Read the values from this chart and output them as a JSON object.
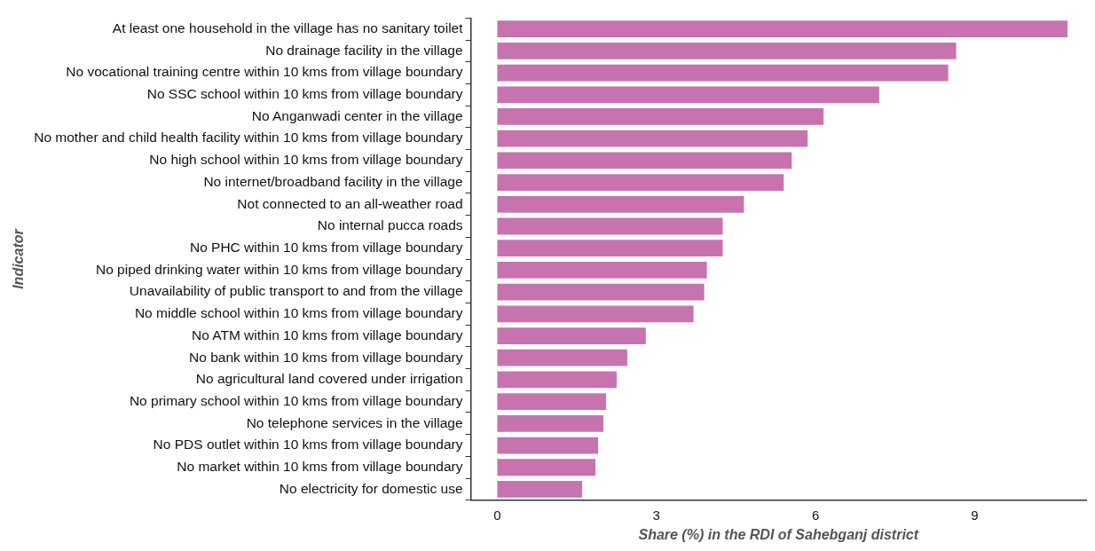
{
  "chart_data": {
    "type": "bar",
    "orientation": "horizontal",
    "ylabel": "Indicator",
    "xlabel": "Share (%) in the RDI of Sahebganj district",
    "categories": [
      "At least one household in the village has no sanitary toilet",
      "No drainage facility in the village",
      "No vocational training centre within 10 kms from village boundary",
      "No SSC school within 10 kms from village boundary",
      "No Anganwadi center in the village",
      "No mother and child health facility within 10 kms from village boundary",
      "No high school within 10 kms from village boundary",
      "No internet/broadband facility in the village",
      "Not connected to an all-weather road",
      "No internal pucca roads",
      "No PHC within 10 kms from village boundary",
      "No piped drinking water within 10 kms from village boundary",
      "Unavailability of public transport to and from the village",
      "No middle school within 10 kms from village boundary",
      "No ATM within 10 kms from village boundary",
      "No bank within 10 kms from village boundary",
      "No agricultural land covered under irrigation",
      "No primary school within 10 kms from village boundary",
      "No telephone services in the village",
      "No PDS outlet within 10 kms from village boundary",
      "No market within 10 kms from village boundary",
      "No electricity for domestic use"
    ],
    "values": [
      10.75,
      8.65,
      8.5,
      7.2,
      6.15,
      5.85,
      5.55,
      5.4,
      4.65,
      4.25,
      4.25,
      3.95,
      3.9,
      3.7,
      2.8,
      2.45,
      2.25,
      2.05,
      2.0,
      1.9,
      1.85,
      1.6
    ],
    "color": "#c673b0",
    "xlim": [
      -0.5,
      11.1
    ],
    "xticks": [
      0,
      3,
      6,
      9
    ],
    "grid": false,
    "legend": false
  }
}
